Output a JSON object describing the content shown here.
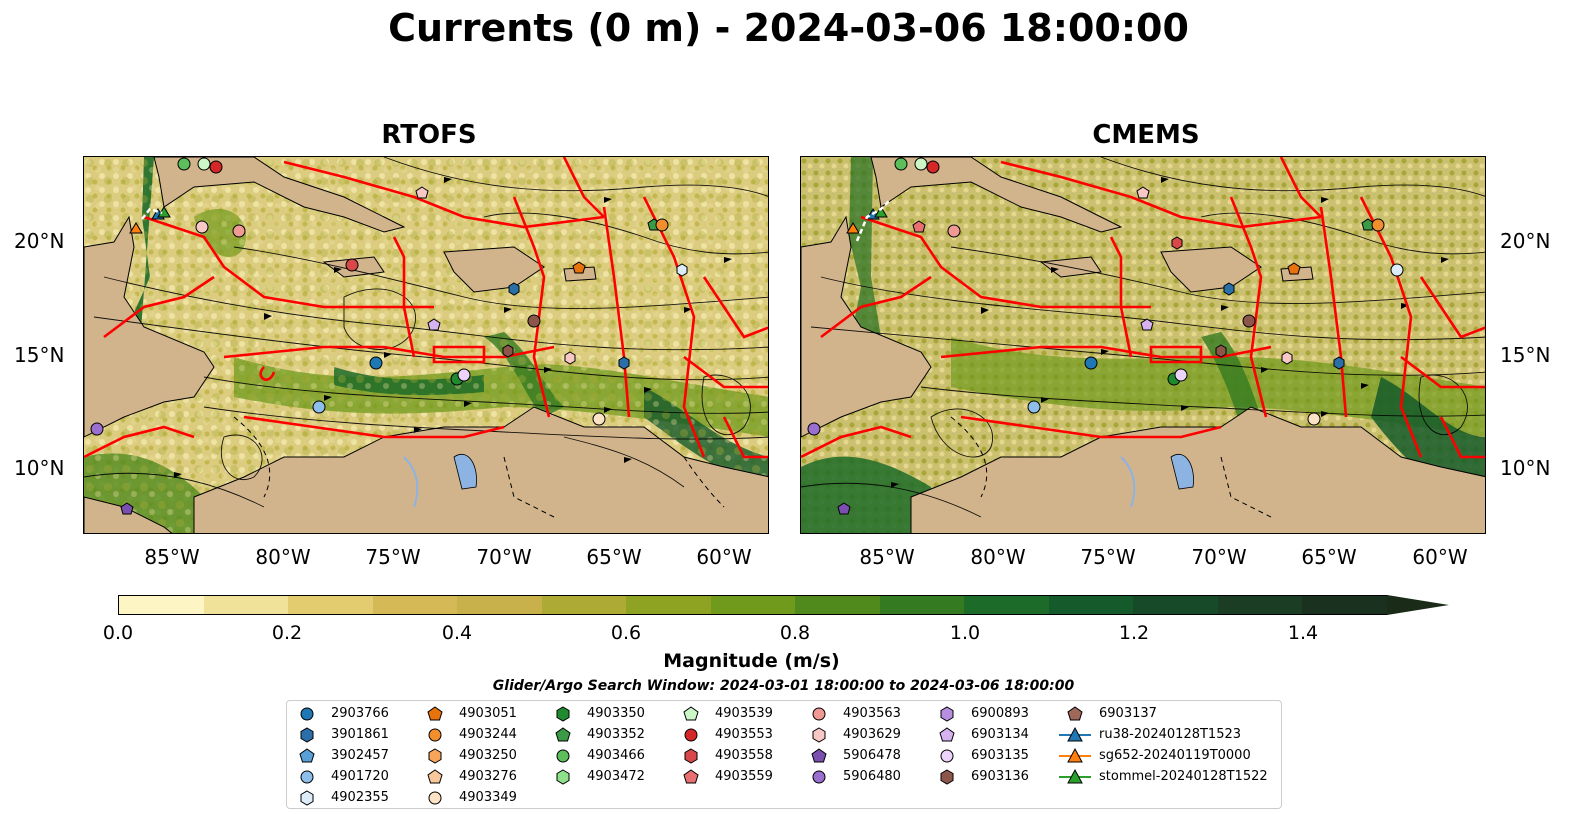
{
  "title": "Currents (0 m) - 2024-03-06 18:00:00",
  "panels": [
    {
      "title": "RTOFS"
    },
    {
      "title": "CMEMS"
    }
  ],
  "axes": {
    "lat_labels": [
      "20°N",
      "15°N",
      "10°N"
    ],
    "lon_labels": [
      "85°W",
      "80°W",
      "75°W",
      "70°W",
      "65°W",
      "60°W"
    ]
  },
  "colorbar": {
    "label": "Magnitude (m/s)",
    "ticks": [
      "0.0",
      "0.2",
      "0.4",
      "0.6",
      "0.8",
      "1.0",
      "1.2",
      "1.4"
    ],
    "range": [
      0.0,
      1.5
    ],
    "extend": "max",
    "colors": [
      "#fdf6c4",
      "#f1e29a",
      "#e3cb70",
      "#d5b956",
      "#c8b14b",
      "#aeaa36",
      "#8ea321",
      "#6f9a1b",
      "#508a1d",
      "#347a21",
      "#1d6b28",
      "#155a2a",
      "#174a28",
      "#1a3d23",
      "#1b3120",
      "#1a2b18"
    ]
  },
  "search_window": "Glider/Argo Search Window: 2024-03-01 18:00:00 to 2024-03-06 18:00:00",
  "legend": {
    "columns": [
      [
        {
          "label": "2903766",
          "marker": "circle",
          "color": "#1f77b4"
        },
        {
          "label": "3901861",
          "marker": "hexagon",
          "color": "#2a6fa8"
        },
        {
          "label": "3902457",
          "marker": "pentagon",
          "color": "#5aa0d8"
        },
        {
          "label": "4901720",
          "marker": "circle",
          "color": "#8ebfea"
        },
        {
          "label": "4902355",
          "marker": "hexagon",
          "color": "#dcecf9"
        }
      ],
      [
        {
          "label": "4903051",
          "marker": "pentagon",
          "color": "#e8720c"
        },
        {
          "label": "4903244",
          "marker": "circle",
          "color": "#f28e2b"
        },
        {
          "label": "4903250",
          "marker": "hexagon",
          "color": "#f7a55a"
        },
        {
          "label": "4903276",
          "marker": "pentagon",
          "color": "#f8c89a"
        },
        {
          "label": "4903349",
          "marker": "circle",
          "color": "#fde3c6"
        }
      ],
      [
        {
          "label": "4903350",
          "marker": "hexagon",
          "color": "#1f8a2e"
        },
        {
          "label": "4903352",
          "marker": "pentagon",
          "color": "#3a9a45"
        },
        {
          "label": "4903466",
          "marker": "circle",
          "color": "#5cbf5c"
        },
        {
          "label": "4903472",
          "marker": "hexagon",
          "color": "#8ee08a"
        }
      ],
      [
        {
          "label": "4903539",
          "marker": "pentagon",
          "color": "#cdf6c8"
        },
        {
          "label": "4903553",
          "marker": "circle",
          "color": "#d62728"
        },
        {
          "label": "4903558",
          "marker": "hexagon",
          "color": "#d94848"
        },
        {
          "label": "4903559",
          "marker": "pentagon",
          "color": "#e87070"
        }
      ],
      [
        {
          "label": "4903563",
          "marker": "circle",
          "color": "#f09a96"
        },
        {
          "label": "4903629",
          "marker": "hexagon",
          "color": "#f8c8c6"
        },
        {
          "label": "5906478",
          "marker": "pentagon",
          "color": "#7b4fb0"
        },
        {
          "label": "5906480",
          "marker": "circle",
          "color": "#9a6fcf"
        }
      ],
      [
        {
          "label": "6900893",
          "marker": "hexagon",
          "color": "#b88ee0"
        },
        {
          "label": "6903134",
          "marker": "pentagon",
          "color": "#d6b3f0"
        },
        {
          "label": "6903135",
          "marker": "circle",
          "color": "#ecd3f9"
        },
        {
          "label": "6903136",
          "marker": "hexagon",
          "color": "#8c564b"
        }
      ],
      [
        {
          "label": "6903137",
          "marker": "pentagon",
          "color": "#a0675b"
        },
        {
          "label": "ru38-20240128T1523",
          "marker": "triangle-line",
          "color": "#1f77b4"
        },
        {
          "label": "sg652-20240119T0000",
          "marker": "triangle-line",
          "color": "#ff7f0e"
        },
        {
          "label": "stommel-20240128T1522",
          "marker": "triangle-line",
          "color": "#2ca02c"
        }
      ]
    ]
  }
}
